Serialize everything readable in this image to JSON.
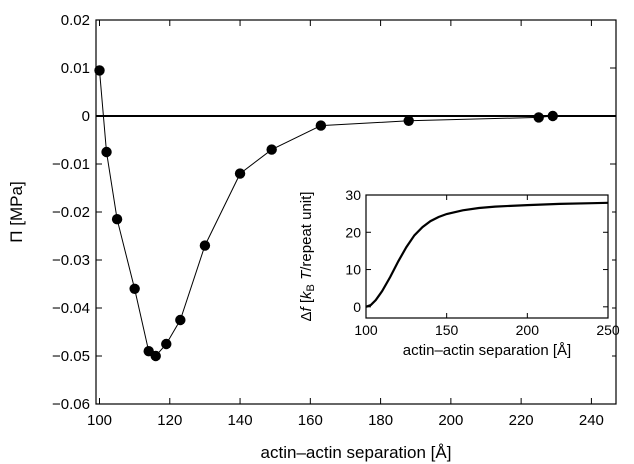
{
  "chart_data": [
    {
      "type": "line",
      "xlabel": "actin–actin separation [Å]",
      "ylabel": "Π [MPa]",
      "xlim": [
        99,
        247
      ],
      "ylim": [
        -0.06,
        0.02
      ],
      "xticks": [
        100,
        120,
        140,
        160,
        180,
        200,
        220,
        240
      ],
      "yticks": [
        -0.06,
        -0.05,
        -0.04,
        -0.03,
        -0.02,
        -0.01,
        0,
        0.01,
        0.02
      ],
      "xtick_labels": [
        "100",
        "120",
        "140",
        "160",
        "180",
        "200",
        "220",
        "240"
      ],
      "ytick_labels": [
        "−0.06",
        "−0.05",
        "−0.04",
        "−0.03",
        "−0.02",
        "−0.01",
        "0",
        "0.01",
        "0.02"
      ],
      "grid": false,
      "reference_line_y": 0,
      "series": [
        {
          "marker": "circle",
          "x": [
            100,
            102,
            105,
            110,
            114,
            116,
            119,
            123,
            130,
            140,
            149,
            163,
            188,
            225,
            229
          ],
          "y": [
            0.0095,
            -0.0075,
            -0.0215,
            -0.036,
            -0.049,
            -0.05,
            -0.0475,
            -0.0425,
            -0.027,
            -0.012,
            -0.007,
            -0.002,
            -0.001,
            -0.0003,
            0.0
          ]
        }
      ]
    },
    {
      "type": "line",
      "xlabel": "actin–actin separation [Å]",
      "ylabel_parts": [
        "Δ",
        "f",
        " [",
        "k",
        "B",
        " ",
        "T",
        "/repeat unit]"
      ],
      "xlim": [
        100,
        250
      ],
      "ylim": [
        -3,
        30
      ],
      "xticks": [
        100,
        150,
        200,
        250
      ],
      "yticks": [
        0,
        10,
        20,
        30
      ],
      "xtick_labels": [
        "100",
        "150",
        "200",
        "250"
      ],
      "ytick_labels": [
        "0",
        "10",
        "20",
        "30"
      ],
      "grid": false,
      "series": [
        {
          "x": [
            100,
            103,
            106,
            110,
            115,
            120,
            125,
            130,
            135,
            140,
            145,
            150,
            160,
            170,
            180,
            200,
            220,
            240,
            250
          ],
          "y": [
            0,
            0.5,
            1.8,
            4.2,
            8.0,
            12.2,
            16.0,
            19.2,
            21.4,
            23.0,
            24.1,
            24.9,
            25.9,
            26.5,
            26.9,
            27.3,
            27.6,
            27.8,
            27.9
          ]
        }
      ]
    }
  ]
}
